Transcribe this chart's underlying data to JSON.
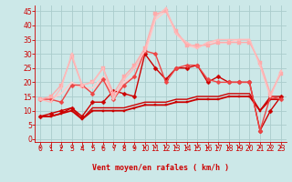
{
  "xlabel": "Vent moyen/en rafales ( km/h )",
  "background_color": "#cce8e8",
  "grid_color": "#aacccc",
  "x_ticks": [
    0,
    1,
    2,
    3,
    4,
    5,
    6,
    7,
    8,
    9,
    10,
    11,
    12,
    13,
    14,
    15,
    16,
    17,
    18,
    19,
    20,
    21,
    22,
    23
  ],
  "ylim": [
    -1,
    47
  ],
  "xlim": [
    -0.5,
    23.5
  ],
  "yticks": [
    0,
    5,
    10,
    15,
    20,
    25,
    30,
    35,
    40,
    45
  ],
  "lines": [
    {
      "x": [
        0,
        1,
        2,
        3,
        4,
        5,
        6,
        7,
        8,
        9,
        10,
        11,
        12,
        13,
        14,
        15,
        16,
        17,
        18,
        19,
        20,
        21,
        22,
        23
      ],
      "y": [
        8,
        8,
        9,
        10,
        7,
        10,
        10,
        10,
        10,
        11,
        12,
        12,
        12,
        13,
        13,
        14,
        14,
        14,
        15,
        15,
        15,
        10,
        14,
        14
      ],
      "color": "#cc0000",
      "lw": 1.3,
      "marker": "s",
      "ms": 2.0
    },
    {
      "x": [
        0,
        1,
        2,
        3,
        4,
        5,
        6,
        7,
        8,
        9,
        10,
        11,
        12,
        13,
        14,
        15,
        16,
        17,
        18,
        19,
        20,
        21,
        22,
        23
      ],
      "y": [
        8,
        8,
        9,
        11,
        7,
        11,
        11,
        11,
        11,
        12,
        13,
        13,
        13,
        14,
        14,
        15,
        15,
        15,
        16,
        16,
        16,
        10,
        15,
        15
      ],
      "color": "#cc0000",
      "lw": 1.0,
      "marker": null,
      "ms": 0
    },
    {
      "x": [
        0,
        1,
        2,
        3,
        4,
        5,
        6,
        7,
        8,
        9,
        10,
        11,
        12,
        13,
        14,
        15,
        16,
        17,
        18,
        19,
        20,
        21,
        22,
        23
      ],
      "y": [
        8,
        9,
        10,
        11,
        8,
        13,
        13,
        17,
        16,
        15,
        30,
        25,
        21,
        25,
        25,
        26,
        20,
        22,
        20,
        20,
        20,
        3,
        10,
        15
      ],
      "color": "#cc0000",
      "lw": 1.0,
      "marker": "D",
      "ms": 2.5
    },
    {
      "x": [
        0,
        1,
        2,
        3,
        4,
        5,
        6,
        7,
        8,
        9,
        10,
        11,
        12,
        13,
        14,
        15,
        16,
        17,
        18,
        19,
        20,
        21,
        22,
        23
      ],
      "y": [
        14,
        14,
        13,
        19,
        19,
        16,
        21,
        14,
        19,
        22,
        31,
        30,
        20,
        25,
        26,
        26,
        21,
        20,
        20,
        20,
        20,
        3,
        15,
        14
      ],
      "color": "#ee4444",
      "lw": 1.0,
      "marker": "D",
      "ms": 2.5
    },
    {
      "x": [
        0,
        1,
        2,
        3,
        4,
        5,
        6,
        7,
        8,
        9,
        10,
        11,
        12,
        13,
        14,
        15,
        16,
        17,
        18,
        19,
        20,
        21,
        22,
        23
      ],
      "y": [
        14,
        15,
        19,
        29,
        19,
        20,
        25,
        16,
        22,
        26,
        32,
        44,
        45,
        38,
        33,
        33,
        33,
        34,
        34,
        34,
        34,
        27,
        16,
        23
      ],
      "color": "#ffaaaa",
      "lw": 1.0,
      "marker": "s",
      "ms": 2.5
    },
    {
      "x": [
        0,
        1,
        2,
        3,
        4,
        5,
        6,
        7,
        8,
        9,
        10,
        11,
        12,
        13,
        14,
        15,
        16,
        17,
        18,
        19,
        20,
        21,
        22,
        23
      ],
      "y": [
        14,
        13,
        18,
        30,
        19,
        20,
        25,
        14,
        21,
        25,
        31,
        43,
        46,
        37,
        34,
        32,
        34,
        35,
        35,
        35,
        35,
        26,
        15,
        24
      ],
      "color": "#ffbbbb",
      "lw": 1.0,
      "marker": "s",
      "ms": 2.0
    },
    {
      "x": [
        0,
        1,
        2,
        3,
        4,
        5,
        6,
        7,
        8,
        9,
        10,
        11,
        12,
        13,
        14,
        15,
        16,
        17,
        18,
        19,
        20,
        21,
        22,
        23
      ],
      "y": [
        14,
        14,
        16,
        20,
        18,
        18,
        22,
        14,
        20,
        22,
        30,
        42,
        45,
        37,
        33,
        32,
        34,
        34,
        34,
        35,
        35,
        26,
        15,
        24
      ],
      "color": "#ffcccc",
      "lw": 1.2,
      "marker": null,
      "ms": 0
    }
  ],
  "arrow_color": "#cc0000",
  "tick_color": "#cc0000",
  "tick_label_color": "#cc0000",
  "xlabel_color": "#cc0000",
  "axis_label_fontsize": 6,
  "tick_fontsize": 5.5
}
